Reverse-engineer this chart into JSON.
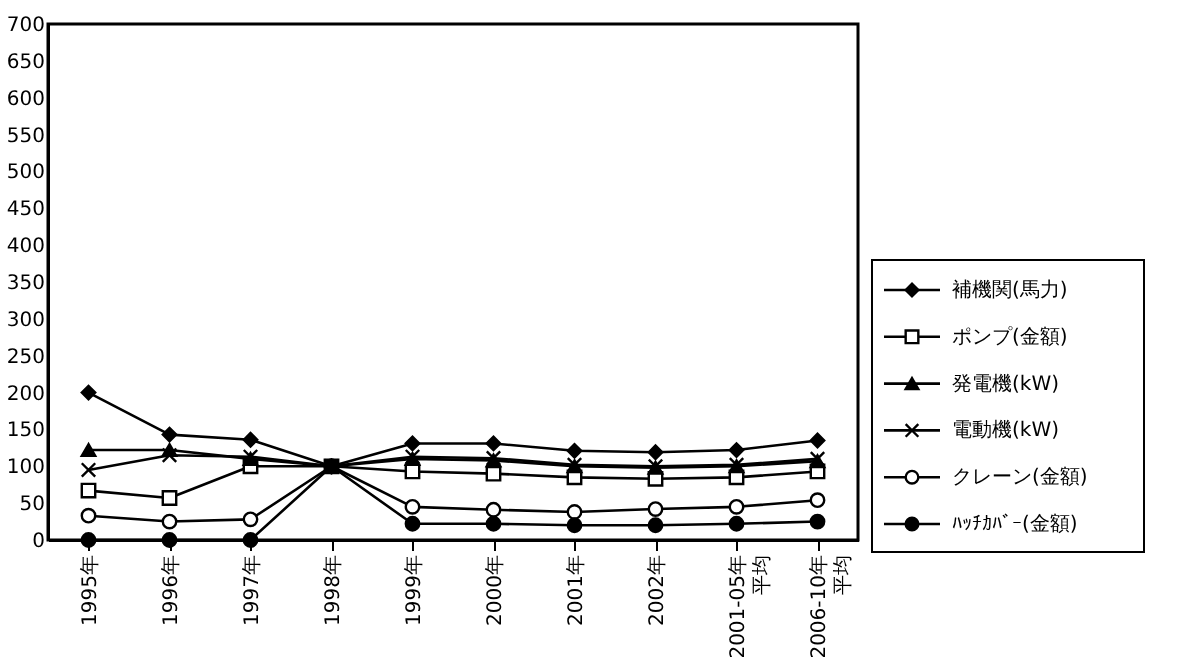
{
  "chart_data": {
    "type": "line",
    "categories": [
      "1995年",
      "1996年",
      "1997年",
      "1998年",
      "1999年",
      "2000年",
      "2001年",
      "2002年",
      "2001-05年平均",
      "2006-10年平均"
    ],
    "series": [
      {
        "name": "補機関(馬力)",
        "color": "#000000",
        "marker": "diamond",
        "values": [
          200,
          143,
          136,
          100,
          131,
          131,
          121,
          119,
          122,
          135
        ]
      },
      {
        "name": "ポンプ(金額)",
        "color": "#000000",
        "marker": "square",
        "values": [
          67,
          57,
          100,
          100,
          93,
          90,
          85,
          83,
          85,
          93
        ]
      },
      {
        "name": "発電機(kW)",
        "color": "#000000",
        "marker": "triangle",
        "values": [
          122,
          122,
          110,
          100,
          110,
          108,
          100,
          98,
          100,
          107
        ]
      },
      {
        "name": "電動機(kW)",
        "color": "#000000",
        "marker": "cross",
        "values": [
          95,
          115,
          113,
          100,
          113,
          111,
          102,
          100,
          102,
          110
        ]
      },
      {
        "name": "クレーン(金額)",
        "color": "#000000",
        "marker": "circle",
        "values": [
          33,
          25,
          28,
          100,
          45,
          41,
          38,
          42,
          45,
          54
        ]
      },
      {
        "name": "ﾊｯﾁｶﾊﾞｰ(金額)",
        "color": "#000000",
        "marker": "circle",
        "values": [
          0,
          0,
          0,
          100,
          22,
          22,
          20,
          20,
          22,
          25
        ]
      }
    ],
    "ylim": [
      0,
      700
    ],
    "yticks": [
      0,
      50,
      100,
      150,
      200,
      250,
      300,
      350,
      400,
      450,
      500,
      550,
      600,
      650,
      700
    ],
    "grid": false,
    "legend": "right",
    "line_style": "solid"
  }
}
